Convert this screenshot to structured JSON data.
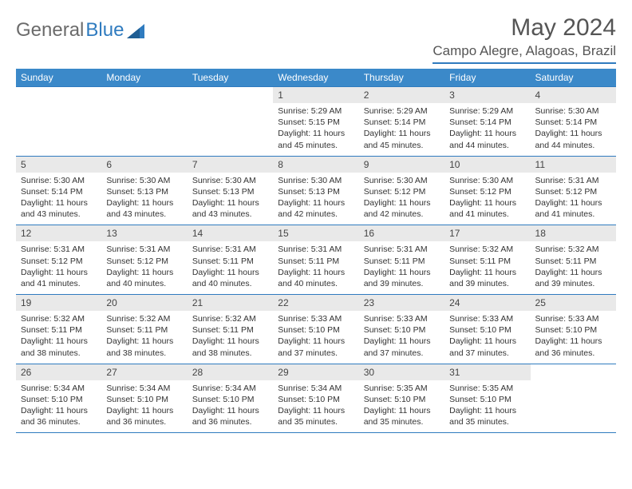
{
  "logo": {
    "text1": "General",
    "text2": "Blue"
  },
  "header": {
    "title": "May 2024",
    "location": "Campo Alegre, Alagoas, Brazil"
  },
  "calendar": {
    "type": "table",
    "header_bg": "#3b89c9",
    "header_fg": "#ffffff",
    "border_color": "#2f7bbf",
    "daynum_bg": "#e9e9e9",
    "font_family": "Arial",
    "columns": [
      "Sunday",
      "Monday",
      "Tuesday",
      "Wednesday",
      "Thursday",
      "Friday",
      "Saturday"
    ],
    "weeks": [
      [
        {
          "empty": true
        },
        {
          "empty": true
        },
        {
          "empty": true
        },
        {
          "day": "1",
          "sunrise": "Sunrise: 5:29 AM",
          "sunset": "Sunset: 5:15 PM",
          "daylight": "Daylight: 11 hours and 45 minutes."
        },
        {
          "day": "2",
          "sunrise": "Sunrise: 5:29 AM",
          "sunset": "Sunset: 5:14 PM",
          "daylight": "Daylight: 11 hours and 45 minutes."
        },
        {
          "day": "3",
          "sunrise": "Sunrise: 5:29 AM",
          "sunset": "Sunset: 5:14 PM",
          "daylight": "Daylight: 11 hours and 44 minutes."
        },
        {
          "day": "4",
          "sunrise": "Sunrise: 5:30 AM",
          "sunset": "Sunset: 5:14 PM",
          "daylight": "Daylight: 11 hours and 44 minutes."
        }
      ],
      [
        {
          "day": "5",
          "sunrise": "Sunrise: 5:30 AM",
          "sunset": "Sunset: 5:14 PM",
          "daylight": "Daylight: 11 hours and 43 minutes."
        },
        {
          "day": "6",
          "sunrise": "Sunrise: 5:30 AM",
          "sunset": "Sunset: 5:13 PM",
          "daylight": "Daylight: 11 hours and 43 minutes."
        },
        {
          "day": "7",
          "sunrise": "Sunrise: 5:30 AM",
          "sunset": "Sunset: 5:13 PM",
          "daylight": "Daylight: 11 hours and 43 minutes."
        },
        {
          "day": "8",
          "sunrise": "Sunrise: 5:30 AM",
          "sunset": "Sunset: 5:13 PM",
          "daylight": "Daylight: 11 hours and 42 minutes."
        },
        {
          "day": "9",
          "sunrise": "Sunrise: 5:30 AM",
          "sunset": "Sunset: 5:12 PM",
          "daylight": "Daylight: 11 hours and 42 minutes."
        },
        {
          "day": "10",
          "sunrise": "Sunrise: 5:30 AM",
          "sunset": "Sunset: 5:12 PM",
          "daylight": "Daylight: 11 hours and 41 minutes."
        },
        {
          "day": "11",
          "sunrise": "Sunrise: 5:31 AM",
          "sunset": "Sunset: 5:12 PM",
          "daylight": "Daylight: 11 hours and 41 minutes."
        }
      ],
      [
        {
          "day": "12",
          "sunrise": "Sunrise: 5:31 AM",
          "sunset": "Sunset: 5:12 PM",
          "daylight": "Daylight: 11 hours and 41 minutes."
        },
        {
          "day": "13",
          "sunrise": "Sunrise: 5:31 AM",
          "sunset": "Sunset: 5:12 PM",
          "daylight": "Daylight: 11 hours and 40 minutes."
        },
        {
          "day": "14",
          "sunrise": "Sunrise: 5:31 AM",
          "sunset": "Sunset: 5:11 PM",
          "daylight": "Daylight: 11 hours and 40 minutes."
        },
        {
          "day": "15",
          "sunrise": "Sunrise: 5:31 AM",
          "sunset": "Sunset: 5:11 PM",
          "daylight": "Daylight: 11 hours and 40 minutes."
        },
        {
          "day": "16",
          "sunrise": "Sunrise: 5:31 AM",
          "sunset": "Sunset: 5:11 PM",
          "daylight": "Daylight: 11 hours and 39 minutes."
        },
        {
          "day": "17",
          "sunrise": "Sunrise: 5:32 AM",
          "sunset": "Sunset: 5:11 PM",
          "daylight": "Daylight: 11 hours and 39 minutes."
        },
        {
          "day": "18",
          "sunrise": "Sunrise: 5:32 AM",
          "sunset": "Sunset: 5:11 PM",
          "daylight": "Daylight: 11 hours and 39 minutes."
        }
      ],
      [
        {
          "day": "19",
          "sunrise": "Sunrise: 5:32 AM",
          "sunset": "Sunset: 5:11 PM",
          "daylight": "Daylight: 11 hours and 38 minutes."
        },
        {
          "day": "20",
          "sunrise": "Sunrise: 5:32 AM",
          "sunset": "Sunset: 5:11 PM",
          "daylight": "Daylight: 11 hours and 38 minutes."
        },
        {
          "day": "21",
          "sunrise": "Sunrise: 5:32 AM",
          "sunset": "Sunset: 5:11 PM",
          "daylight": "Daylight: 11 hours and 38 minutes."
        },
        {
          "day": "22",
          "sunrise": "Sunrise: 5:33 AM",
          "sunset": "Sunset: 5:10 PM",
          "daylight": "Daylight: 11 hours and 37 minutes."
        },
        {
          "day": "23",
          "sunrise": "Sunrise: 5:33 AM",
          "sunset": "Sunset: 5:10 PM",
          "daylight": "Daylight: 11 hours and 37 minutes."
        },
        {
          "day": "24",
          "sunrise": "Sunrise: 5:33 AM",
          "sunset": "Sunset: 5:10 PM",
          "daylight": "Daylight: 11 hours and 37 minutes."
        },
        {
          "day": "25",
          "sunrise": "Sunrise: 5:33 AM",
          "sunset": "Sunset: 5:10 PM",
          "daylight": "Daylight: 11 hours and 36 minutes."
        }
      ],
      [
        {
          "day": "26",
          "sunrise": "Sunrise: 5:34 AM",
          "sunset": "Sunset: 5:10 PM",
          "daylight": "Daylight: 11 hours and 36 minutes."
        },
        {
          "day": "27",
          "sunrise": "Sunrise: 5:34 AM",
          "sunset": "Sunset: 5:10 PM",
          "daylight": "Daylight: 11 hours and 36 minutes."
        },
        {
          "day": "28",
          "sunrise": "Sunrise: 5:34 AM",
          "sunset": "Sunset: 5:10 PM",
          "daylight": "Daylight: 11 hours and 36 minutes."
        },
        {
          "day": "29",
          "sunrise": "Sunrise: 5:34 AM",
          "sunset": "Sunset: 5:10 PM",
          "daylight": "Daylight: 11 hours and 35 minutes."
        },
        {
          "day": "30",
          "sunrise": "Sunrise: 5:35 AM",
          "sunset": "Sunset: 5:10 PM",
          "daylight": "Daylight: 11 hours and 35 minutes."
        },
        {
          "day": "31",
          "sunrise": "Sunrise: 5:35 AM",
          "sunset": "Sunset: 5:10 PM",
          "daylight": "Daylight: 11 hours and 35 minutes."
        },
        {
          "empty": true
        }
      ]
    ]
  }
}
